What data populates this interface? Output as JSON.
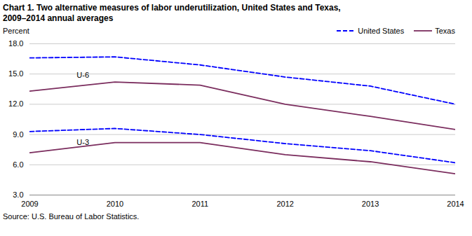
{
  "chart_data": {
    "type": "line",
    "title": "Chart 1. Two alternative measures of labor underutilization, United States and Texas,",
    "subtitle": "2009–2014  annual averages",
    "caption": "Source: U.S. Bureau of Labor Statistics.",
    "y_label": "Percent",
    "x": [
      2009,
      2010,
      2011,
      2012,
      2013,
      2014
    ],
    "series": [
      {
        "name": "United States",
        "color": "#0000FF",
        "line_style": "dashed",
        "values": [
          16.6,
          16.7,
          15.9,
          14.7,
          13.8,
          12.0
        ]
      },
      {
        "name": "Texas",
        "color": "#7B2D5E",
        "line_style": "solid",
        "values": [
          13.3,
          14.2,
          13.9,
          12.0,
          10.8,
          9.5
        ]
      },
      {
        "name": "United States",
        "color": "#0000FF",
        "line_style": "dashed",
        "values": [
          9.3,
          9.6,
          9.0,
          8.1,
          7.4,
          6.2
        ]
      },
      {
        "name": "Texas",
        "color": "#7B2D5E",
        "line_style": "solid",
        "values": [
          7.2,
          8.2,
          8.2,
          7.0,
          6.3,
          5.1
        ]
      }
    ],
    "annotations": [
      {
        "text": "U-6",
        "x": 2009.55,
        "y": 14.6
      },
      {
        "text": "U-3",
        "x": 2009.55,
        "y": 8.0
      }
    ],
    "xlim": [
      2009,
      2014
    ],
    "xticks": [
      2009,
      2010,
      2011,
      2012,
      2013,
      2014
    ],
    "ylim": [
      3.0,
      18.0
    ],
    "yticks": [
      {
        "value": 3.0,
        "label": "3.0"
      },
      {
        "value": 6.0,
        "label": "6.0"
      },
      {
        "value": 9.0,
        "label": "9.0"
      },
      {
        "value": 12.0,
        "label": "12.0"
      },
      {
        "value": 15.0,
        "label": "15.0"
      },
      {
        "value": 18.0,
        "label": "18.0"
      }
    ],
    "grid": "y",
    "legend": "upper right"
  }
}
